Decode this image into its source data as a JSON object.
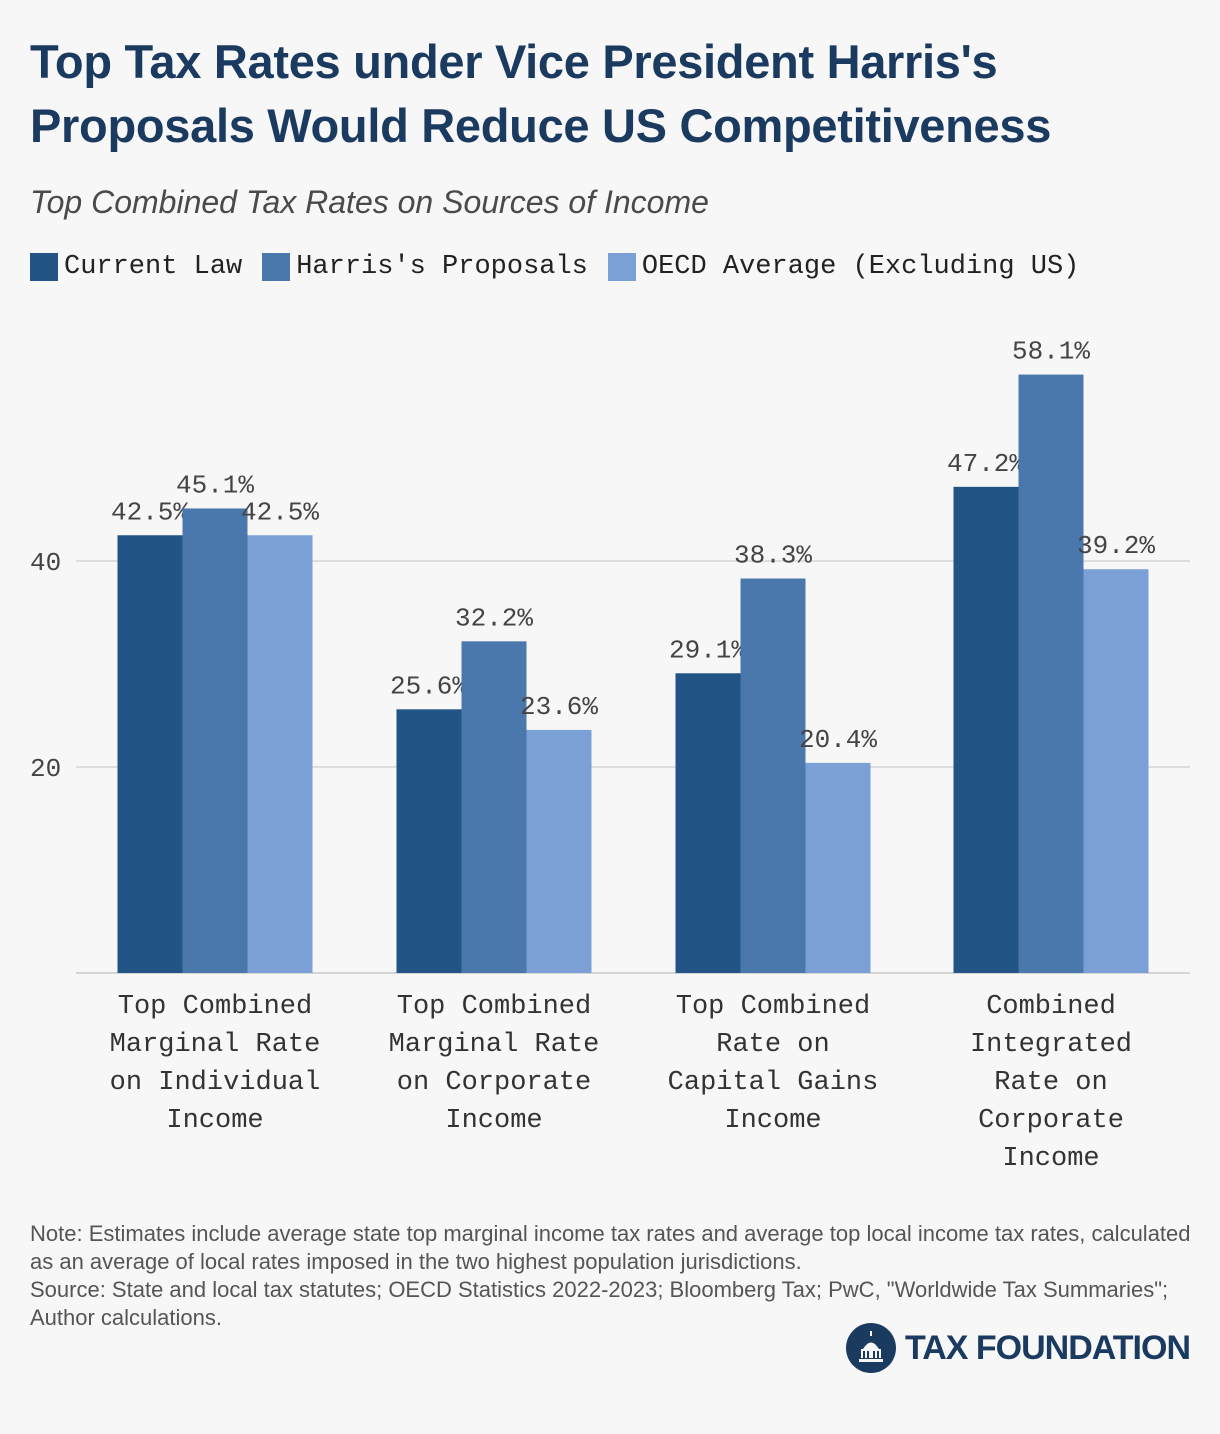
{
  "title": "Top Tax Rates under Vice President Harris's Proposals Would Reduce US Competitiveness",
  "subtitle": "Top Combined Tax Rates on Sources of Income",
  "brand": {
    "name": "TAX FOUNDATION",
    "logo_icon": "capitol-dome-icon"
  },
  "note": "Note: Estimates include average state top marginal income tax rates and average top local income tax rates, calculated as an average of local rates imposed in the two highest population jurisdictions.",
  "source": "Source: State and local tax statutes; OECD Statistics 2022-2023; Bloomberg Tax; PwC, \"Worldwide Tax Summaries\"; Author calculations.",
  "chart_data": {
    "type": "bar",
    "title": "Top Tax Rates under Vice President Harris's Proposals Would Reduce US Competitiveness",
    "subtitle": "Top Combined Tax Rates on Sources of Income",
    "categories": [
      [
        "Top Combined",
        "Marginal Rate",
        "on Individual",
        "Income"
      ],
      [
        "Top Combined",
        "Marginal Rate",
        "on Corporate",
        "Income"
      ],
      [
        "Top Combined",
        "Rate on",
        "Capital Gains",
        "Income"
      ],
      [
        "Combined",
        "Integrated",
        "Rate on",
        "Corporate",
        "Income"
      ]
    ],
    "series": [
      {
        "name": "Current Law",
        "color": "#235486",
        "values": [
          42.5,
          25.6,
          29.1,
          47.2
        ],
        "labels": [
          "42.5%",
          "25.6%",
          "29.1%",
          "47.2%"
        ]
      },
      {
        "name": "Harris's Proposals",
        "color": "#4a78ad",
        "values": [
          45.1,
          32.2,
          38.3,
          58.1
        ],
        "labels": [
          "45.1%",
          "32.2%",
          "38.3%",
          "58.1%"
        ]
      },
      {
        "name": "OECD Average (Excluding US)",
        "color": "#7aa0d6",
        "values": [
          42.5,
          23.6,
          20.4,
          39.2
        ],
        "labels": [
          "42.5%",
          "23.6%",
          "20.4%",
          "39.2%"
        ]
      }
    ],
    "yticks": [
      20,
      40
    ],
    "ylim": [
      0,
      60
    ],
    "grid": true,
    "legend_position": "top-left"
  }
}
